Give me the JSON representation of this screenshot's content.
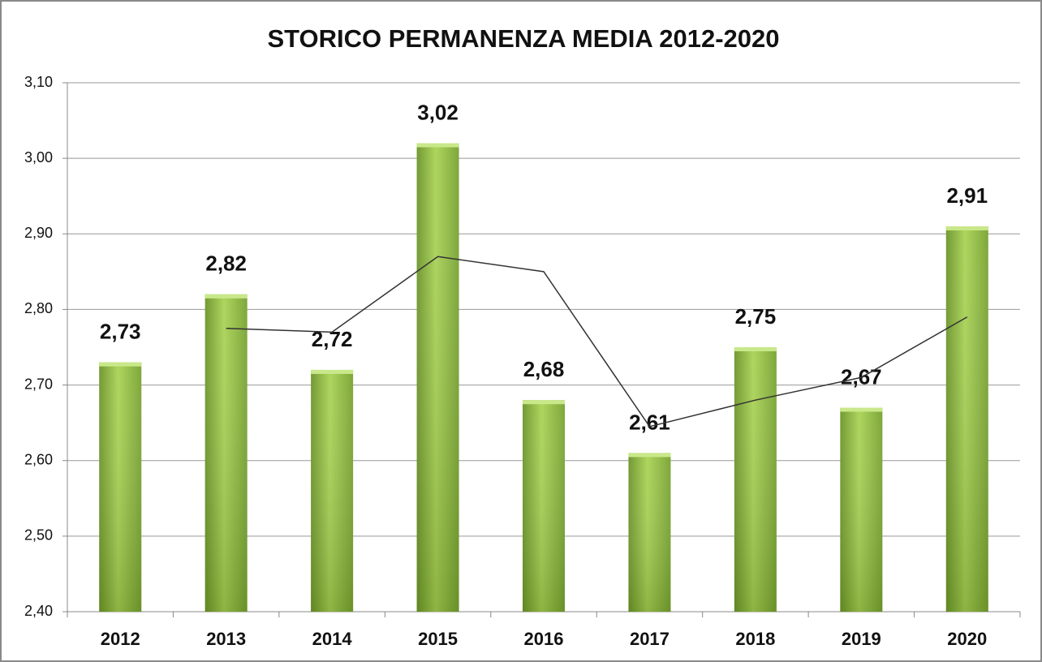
{
  "chart_data": {
    "type": "bar",
    "title": "STORICO PERMANENZA MEDIA 2012-2020",
    "categories": [
      "2012",
      "2013",
      "2014",
      "2015",
      "2016",
      "2017",
      "2018",
      "2019",
      "2020"
    ],
    "series": [
      {
        "type": "bar",
        "color": "#9ac73f",
        "values": [
          2.73,
          2.82,
          2.72,
          3.02,
          2.68,
          2.61,
          2.75,
          2.67,
          2.91
        ],
        "value_labels": [
          "2,73",
          "2,82",
          "2,72",
          "3,02",
          "2,68",
          "2,61",
          "2,75",
          "2,67",
          "2,91"
        ]
      },
      {
        "type": "line",
        "color": "#333333",
        "values": [
          null,
          2.775,
          2.77,
          2.87,
          2.85,
          2.645,
          2.68,
          2.71,
          2.79
        ]
      }
    ],
    "ylim": [
      2.4,
      3.1
    ],
    "yticks": [
      {
        "value": 2.4,
        "label": "2,40"
      },
      {
        "value": 2.5,
        "label": "2,50"
      },
      {
        "value": 2.6,
        "label": "2,60"
      },
      {
        "value": 2.7,
        "label": "2,70"
      },
      {
        "value": 2.8,
        "label": "2,80"
      },
      {
        "value": 2.9,
        "label": "2,90"
      },
      {
        "value": 3.0,
        "label": "3,00"
      },
      {
        "value": 3.1,
        "label": "3,10"
      }
    ],
    "grid": true
  }
}
